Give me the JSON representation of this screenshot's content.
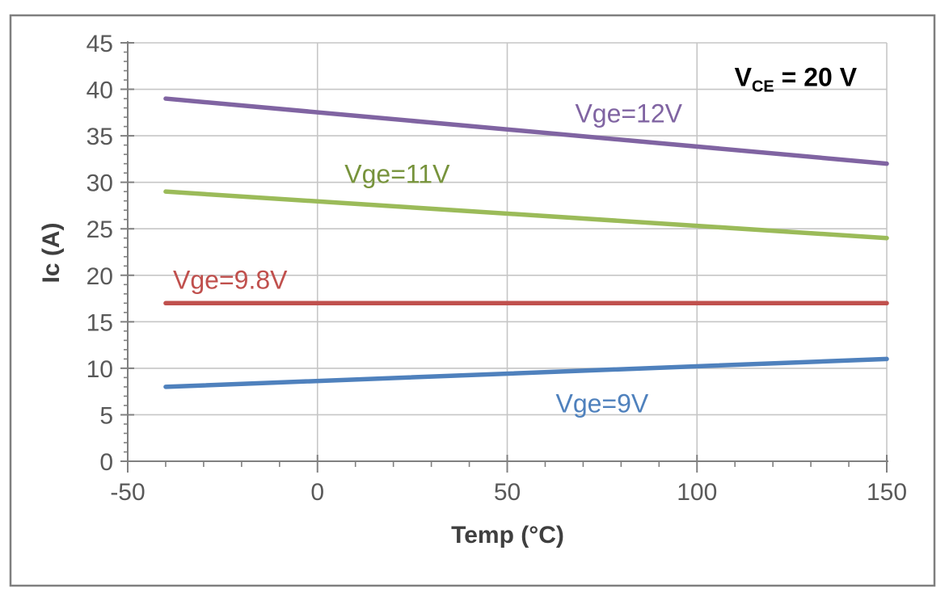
{
  "figure": {
    "background": "#ffffff",
    "frame_border_color": "#7f7f7f",
    "gridline_color": "#c6c6c6",
    "axis_line_color": "#808080",
    "tick_color": "#808080",
    "tick_label_color": "#595959",
    "axis_title_color": "#3f3f3f"
  },
  "chart_data": {
    "type": "line",
    "title": "",
    "xlabel": "Temp (°C)",
    "ylabel": "Ic (A)",
    "xlim": [
      -50,
      150
    ],
    "ylim": [
      0,
      45
    ],
    "x_major_ticks": [
      -50,
      0,
      50,
      100,
      150
    ],
    "x_minor_step": 10,
    "y_major_step": 5,
    "y_minor_step": 1,
    "grid": true,
    "legend_position": "none",
    "series": [
      {
        "name": "Vge=12V",
        "color": "#8064A2",
        "label_color": "#8064A2",
        "x": [
          -40,
          150
        ],
        "values": [
          39,
          32
        ],
        "label_pos": {
          "x": 82,
          "y": 37.4
        }
      },
      {
        "name": "Vge=11V",
        "color": "#9BBB59",
        "label_color": "#77933C",
        "x": [
          -40,
          150
        ],
        "values": [
          29,
          24
        ],
        "label_pos": {
          "x": 21,
          "y": 30.9
        }
      },
      {
        "name": "Vge=9.8V",
        "color": "#C0504D",
        "label_color": "#C0504D",
        "x": [
          -40,
          150
        ],
        "values": [
          17,
          17
        ],
        "label_pos": {
          "x": -23,
          "y": 19.5
        }
      },
      {
        "name": "Vge=9V",
        "color": "#4F81BD",
        "label_color": "#4F81BD",
        "x": [
          -40,
          150
        ],
        "values": [
          8,
          11
        ],
        "label_pos": {
          "x": 75,
          "y": 6.2
        }
      }
    ],
    "annotation": {
      "text_main": "V",
      "text_sub": "CE",
      "text_rest": " = 20 V",
      "color": "#000000",
      "pos": {
        "x": 126,
        "y": 41.3
      }
    }
  }
}
